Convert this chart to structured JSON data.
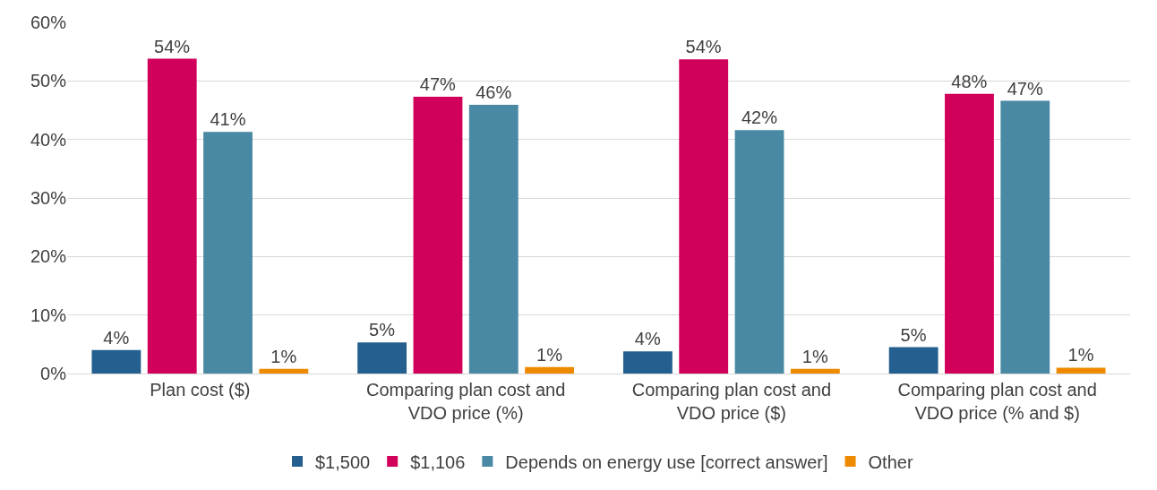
{
  "chart_data": {
    "type": "bar",
    "categories": [
      "Plan cost ($)",
      "Comparing plan cost and VDO price (%)",
      "Comparing plan cost and VDO price ($)",
      "Comparing plan cost and VDO price (% and $)"
    ],
    "series": [
      {
        "name": "$1,500",
        "color": "#245f8f",
        "values": [
          4.0,
          5.3,
          3.8,
          4.5
        ],
        "value_labels": [
          "4%",
          "5%",
          "4%",
          "5%"
        ]
      },
      {
        "name": "$1,106",
        "color": "#d1005a",
        "values": [
          53.8,
          47.3,
          53.7,
          47.8
        ],
        "value_labels": [
          "54%",
          "47%",
          "54%",
          "48%"
        ]
      },
      {
        "name": "Depends on energy use [correct answer]",
        "color": "#4a89a3",
        "values": [
          41.3,
          45.9,
          41.6,
          46.6
        ],
        "value_labels": [
          "41%",
          "46%",
          "42%",
          "47%"
        ]
      },
      {
        "name": "Other",
        "color": "#ee8a00",
        "values": [
          0.8,
          1.1,
          0.8,
          1.0
        ],
        "value_labels": [
          "1%",
          "1%",
          "1%",
          "1%"
        ]
      }
    ],
    "ylim": [
      0,
      60
    ],
    "yticks": [
      {
        "value": 0,
        "label": "0%"
      },
      {
        "value": 10,
        "label": "10%"
      },
      {
        "value": 20,
        "label": "20%"
      },
      {
        "value": 30,
        "label": "30%"
      },
      {
        "value": 40,
        "label": "40%"
      },
      {
        "value": 50,
        "label": "50%"
      },
      {
        "value": 60,
        "label": "60%"
      }
    ],
    "grid": "y",
    "legend": "bottom"
  }
}
